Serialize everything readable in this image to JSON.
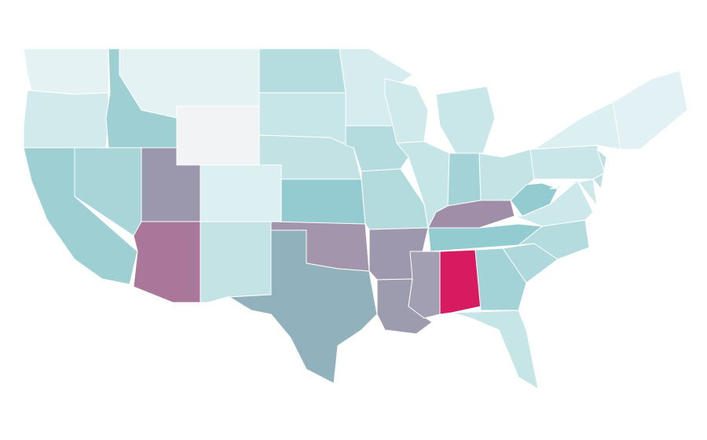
{
  "map": {
    "fills": [
      "#e4f2f4",
      "#d3eaec",
      "#9ecfd3",
      "#a8d5d8",
      "#9ecfd3",
      "#e4f2f4",
      "#f1f3f4",
      "#9b98ad",
      "#a87799",
      "#dceff1",
      "#c4e3e5",
      "#b5dcde",
      "#c7e6e8",
      "#c3e2e4",
      "#93cbd0",
      "#a395ab",
      "#91b2bd",
      "#d6ecef",
      "#b4dcde",
      "#b3dadd",
      "#9d98ad",
      "#9d9caf",
      "#d0e9eb",
      "#c6e5e7",
      "#c9e6e8",
      "#a3d3d6",
      "#c3e3e5",
      "#a08ea9",
      "#92cbd0",
      "#a29fb2",
      "#d81b60",
      "#a3d3d6",
      "#c6e5e7",
      "#aed8db",
      "#b4dcde",
      "#cde8ea",
      "#93cbd0",
      "#c9e6e8",
      "#dceff1",
      "#cfe8ea",
      "#bfe0e3",
      "#e2f1f3"
    ]
  }
}
